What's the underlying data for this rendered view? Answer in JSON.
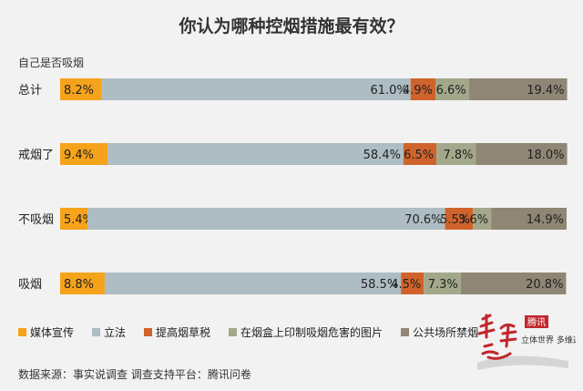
{
  "title": "你认为哪种控烟措施最有效？",
  "row_header": "自己是否吸烟",
  "source": "数据来源：事实说调查   调查支持平台：腾讯问卷",
  "logo": {
    "text": "事实说",
    "badge": "腾讯",
    "tagline": "立体世界 多维选择"
  },
  "chart_data": {
    "type": "bar",
    "orientation": "horizontal",
    "stacked": true,
    "categories": [
      "总计",
      "戒烟了",
      "不吸烟",
      "吸烟"
    ],
    "series": [
      {
        "name": "媒体宣传",
        "color": "#f5a31a",
        "values": [
          8.2,
          9.4,
          5.4,
          8.8
        ]
      },
      {
        "name": "立法",
        "color": "#aebcc3",
        "values": [
          61.0,
          58.4,
          70.6,
          58.5
        ]
      },
      {
        "name": "提高烟草税",
        "color": "#d0632b",
        "values": [
          4.9,
          6.5,
          5.5,
          4.5
        ]
      },
      {
        "name": "在烟盒上印制吸烟危害的图片",
        "color": "#a3a88a",
        "values": [
          6.6,
          7.8,
          3.6,
          7.3
        ]
      },
      {
        "name": "公共场所禁烟",
        "color": "#8f8675",
        "values": [
          19.4,
          18.0,
          14.9,
          20.8
        ]
      }
    ],
    "labels": [
      [
        "8.2%",
        "61.0%",
        "4.9%",
        "6.6%",
        "19.4%"
      ],
      [
        "9.4%",
        "58.4%",
        "6.5%",
        "7.8%",
        "18.0%"
      ],
      [
        "5.4%",
        "70.6%",
        "5.5%",
        "3.6%",
        "14.9%"
      ],
      [
        "8.8%",
        "58.5%",
        "4.5%",
        "7.3%",
        "20.8%"
      ]
    ],
    "xlim": [
      0,
      100
    ],
    "legend_position": "bottom"
  }
}
